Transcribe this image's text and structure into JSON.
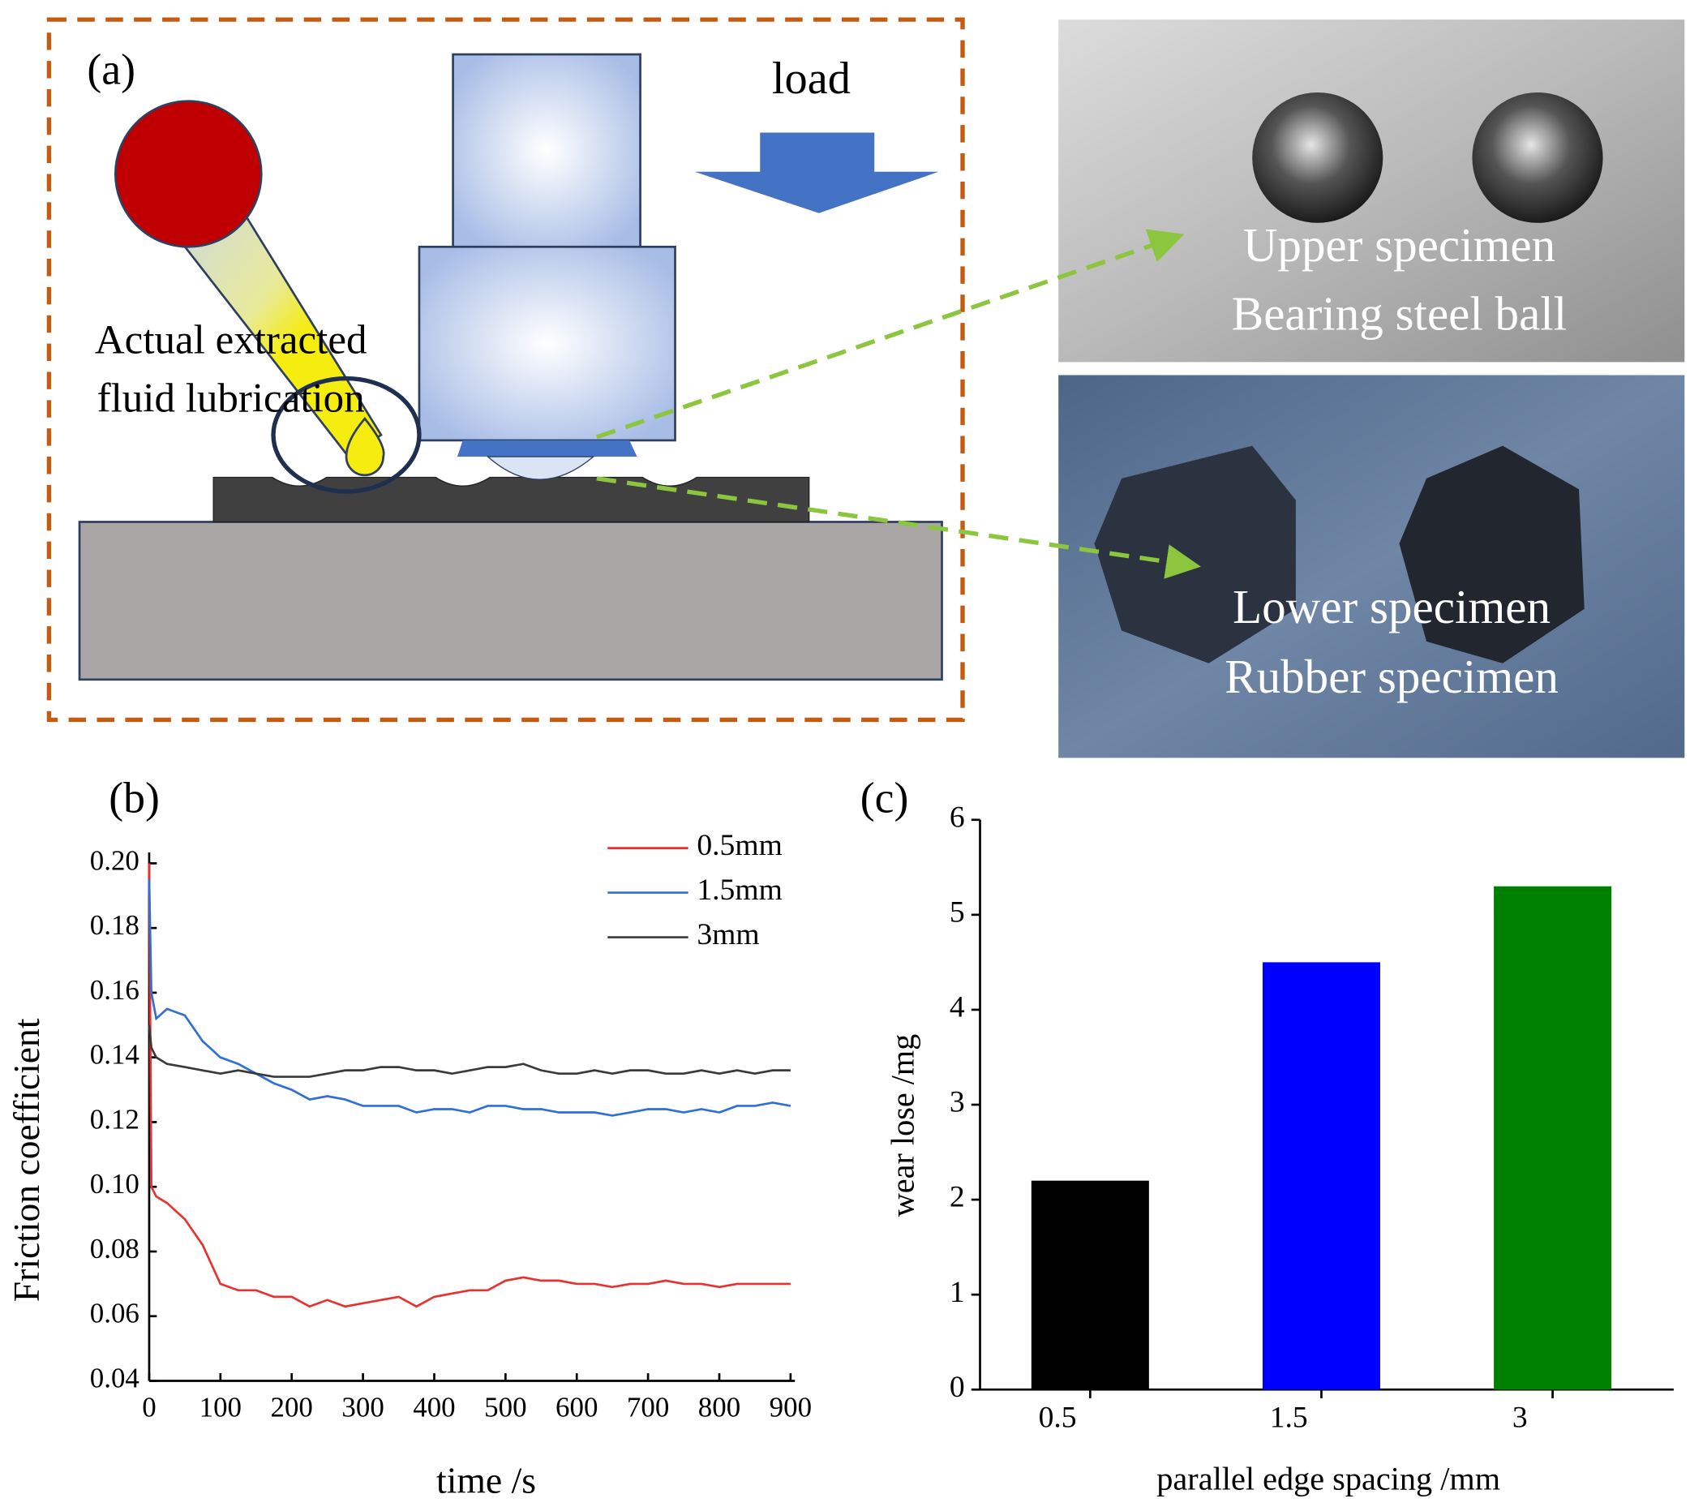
{
  "diagram": {
    "panel_label": "(a)",
    "load": "load",
    "lubrication": [
      "Actual extracted",
      "fluid lubrication"
    ],
    "upper": [
      "Upper specimen",
      "Bearing steel ball"
    ],
    "lower": [
      "Lower specimen",
      "Rubber specimen"
    ]
  },
  "chart_data": [
    {
      "type": "line",
      "panel_label": "(b)",
      "x_label": "time /s",
      "y_label": "Friction coefficient",
      "x": [
        0,
        3,
        10,
        25,
        50,
        75,
        100,
        125,
        150,
        175,
        200,
        225,
        250,
        275,
        300,
        325,
        350,
        375,
        400,
        425,
        450,
        475,
        500,
        525,
        550,
        575,
        600,
        625,
        650,
        675,
        700,
        725,
        750,
        775,
        800,
        825,
        850,
        875,
        900
      ],
      "series": [
        {
          "name": "0.5mm",
          "color": "#e8322f",
          "values": [
            0.2,
            0.1,
            0.097,
            0.095,
            0.09,
            0.082,
            0.07,
            0.068,
            0.068,
            0.066,
            0.066,
            0.063,
            0.065,
            0.063,
            0.064,
            0.065,
            0.066,
            0.063,
            0.066,
            0.067,
            0.068,
            0.068,
            0.071,
            0.072,
            0.071,
            0.071,
            0.07,
            0.07,
            0.069,
            0.07,
            0.07,
            0.071,
            0.07,
            0.07,
            0.069,
            0.07,
            0.07,
            0.07,
            0.07
          ]
        },
        {
          "name": "1.5mm",
          "color": "#2e6fd8",
          "values": [
            0.195,
            0.16,
            0.152,
            0.155,
            0.153,
            0.145,
            0.14,
            0.138,
            0.135,
            0.132,
            0.13,
            0.127,
            0.128,
            0.127,
            0.125,
            0.125,
            0.125,
            0.123,
            0.124,
            0.124,
            0.123,
            0.125,
            0.125,
            0.124,
            0.124,
            0.123,
            0.123,
            0.123,
            0.122,
            0.123,
            0.124,
            0.124,
            0.123,
            0.124,
            0.123,
            0.125,
            0.125,
            0.126,
            0.125
          ]
        },
        {
          "name": "3mm",
          "color": "#3a3a3a",
          "values": [
            0.15,
            0.143,
            0.14,
            0.138,
            0.137,
            0.136,
            0.135,
            0.136,
            0.135,
            0.134,
            0.134,
            0.134,
            0.135,
            0.136,
            0.136,
            0.137,
            0.137,
            0.136,
            0.136,
            0.135,
            0.136,
            0.137,
            0.137,
            0.138,
            0.136,
            0.135,
            0.135,
            0.136,
            0.135,
            0.136,
            0.136,
            0.135,
            0.135,
            0.136,
            0.135,
            0.136,
            0.135,
            0.136,
            0.136
          ]
        }
      ],
      "xlim": [
        0,
        900
      ],
      "xticks": [
        0,
        100,
        200,
        300,
        400,
        500,
        600,
        700,
        800,
        900
      ],
      "ylim": [
        0.04,
        0.2
      ],
      "yticks": [
        0.04,
        0.06,
        0.08,
        {
          "value": 0.1,
          "label": "0.10"
        },
        0.12,
        0.14,
        0.16,
        0.18,
        {
          "value": 0.2,
          "label": "0.20"
        }
      ]
    },
    {
      "type": "bar",
      "panel_label": "(c)",
      "x_label": "parallel edge spacing /mm",
      "y_label": "wear lose /mg",
      "categories": [
        "0.5",
        "1.5",
        "3"
      ],
      "values": [
        2.2,
        4.5,
        5.3
      ],
      "colors": [
        "#000000",
        "#0000ff",
        "#008000"
      ],
      "ylim": [
        0,
        6
      ],
      "yticks": [
        0,
        1,
        2,
        3,
        4,
        5,
        6
      ]
    }
  ]
}
